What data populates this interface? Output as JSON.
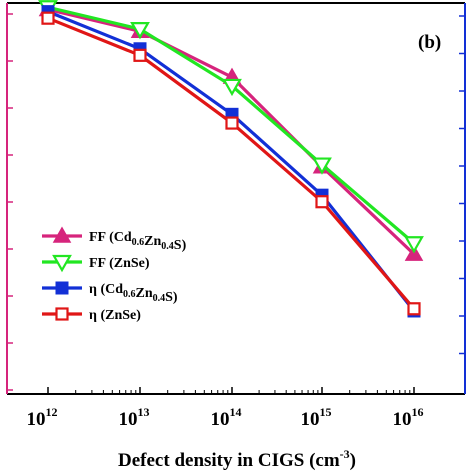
{
  "chart_data": {
    "type": "line",
    "panel_label": "(b)",
    "xlabel": "Defect density in CIGS (cm",
    "xlabel_sup": "-3",
    "xlabel_end": ")",
    "x_scale": "log",
    "x": [
      1000000000000.0,
      10000000000000.0,
      100000000000000.0,
      1000000000000000.0,
      1e+16
    ],
    "x_tick_labels": [
      {
        "base": "10",
        "exp": "12"
      },
      {
        "base": "10",
        "exp": "13"
      },
      {
        "base": "10",
        "exp": "14"
      },
      {
        "base": "10",
        "exp": "15"
      },
      {
        "base": "10",
        "exp": "16"
      }
    ],
    "ylim": [
      0,
      1
    ],
    "grid": false,
    "legend_position": "lower-left",
    "series": [
      {
        "name_parts": [
          [
            "FF (Cd",
            ""
          ],
          [
            "0.6",
            "sub"
          ],
          [
            "Zn",
            ""
          ],
          [
            "0.4",
            "sub"
          ],
          [
            "S)",
            ""
          ]
        ],
        "name": "FF (Cd0.6Zn0.4S)",
        "color": "#d6247c",
        "marker": "triangle-up-filled",
        "values": [
          0.88,
          0.83,
          0.725,
          0.52,
          0.32
        ]
      },
      {
        "name_parts": [
          [
            "FF (ZnSe)",
            ""
          ]
        ],
        "name": "FF (ZnSe)",
        "color": "#22e622",
        "marker": "triangle-down-open",
        "values": [
          0.885,
          0.835,
          0.705,
          0.525,
          0.345
        ]
      },
      {
        "name_parts": [
          [
            "η (Cd",
            ""
          ],
          [
            "0.6",
            "sub"
          ],
          [
            "Zn",
            ""
          ],
          [
            "0.4",
            "sub"
          ],
          [
            "S)",
            ""
          ]
        ],
        "name": "η (Cd0.6Zn0.4S)",
        "color": "#1230d6",
        "marker": "square-filled",
        "values": [
          0.875,
          0.79,
          0.64,
          0.455,
          0.19
        ]
      },
      {
        "name_parts": [
          [
            "η (ZnSe)",
            ""
          ]
        ],
        "name": "η (ZnSe)",
        "color": "#e01616",
        "marker": "square-open",
        "values": [
          0.86,
          0.775,
          0.62,
          0.44,
          0.195
        ]
      }
    ],
    "colors": {
      "left_axis": "#d6247c",
      "right_axis": "#1230d6",
      "frame": "#000000"
    }
  }
}
